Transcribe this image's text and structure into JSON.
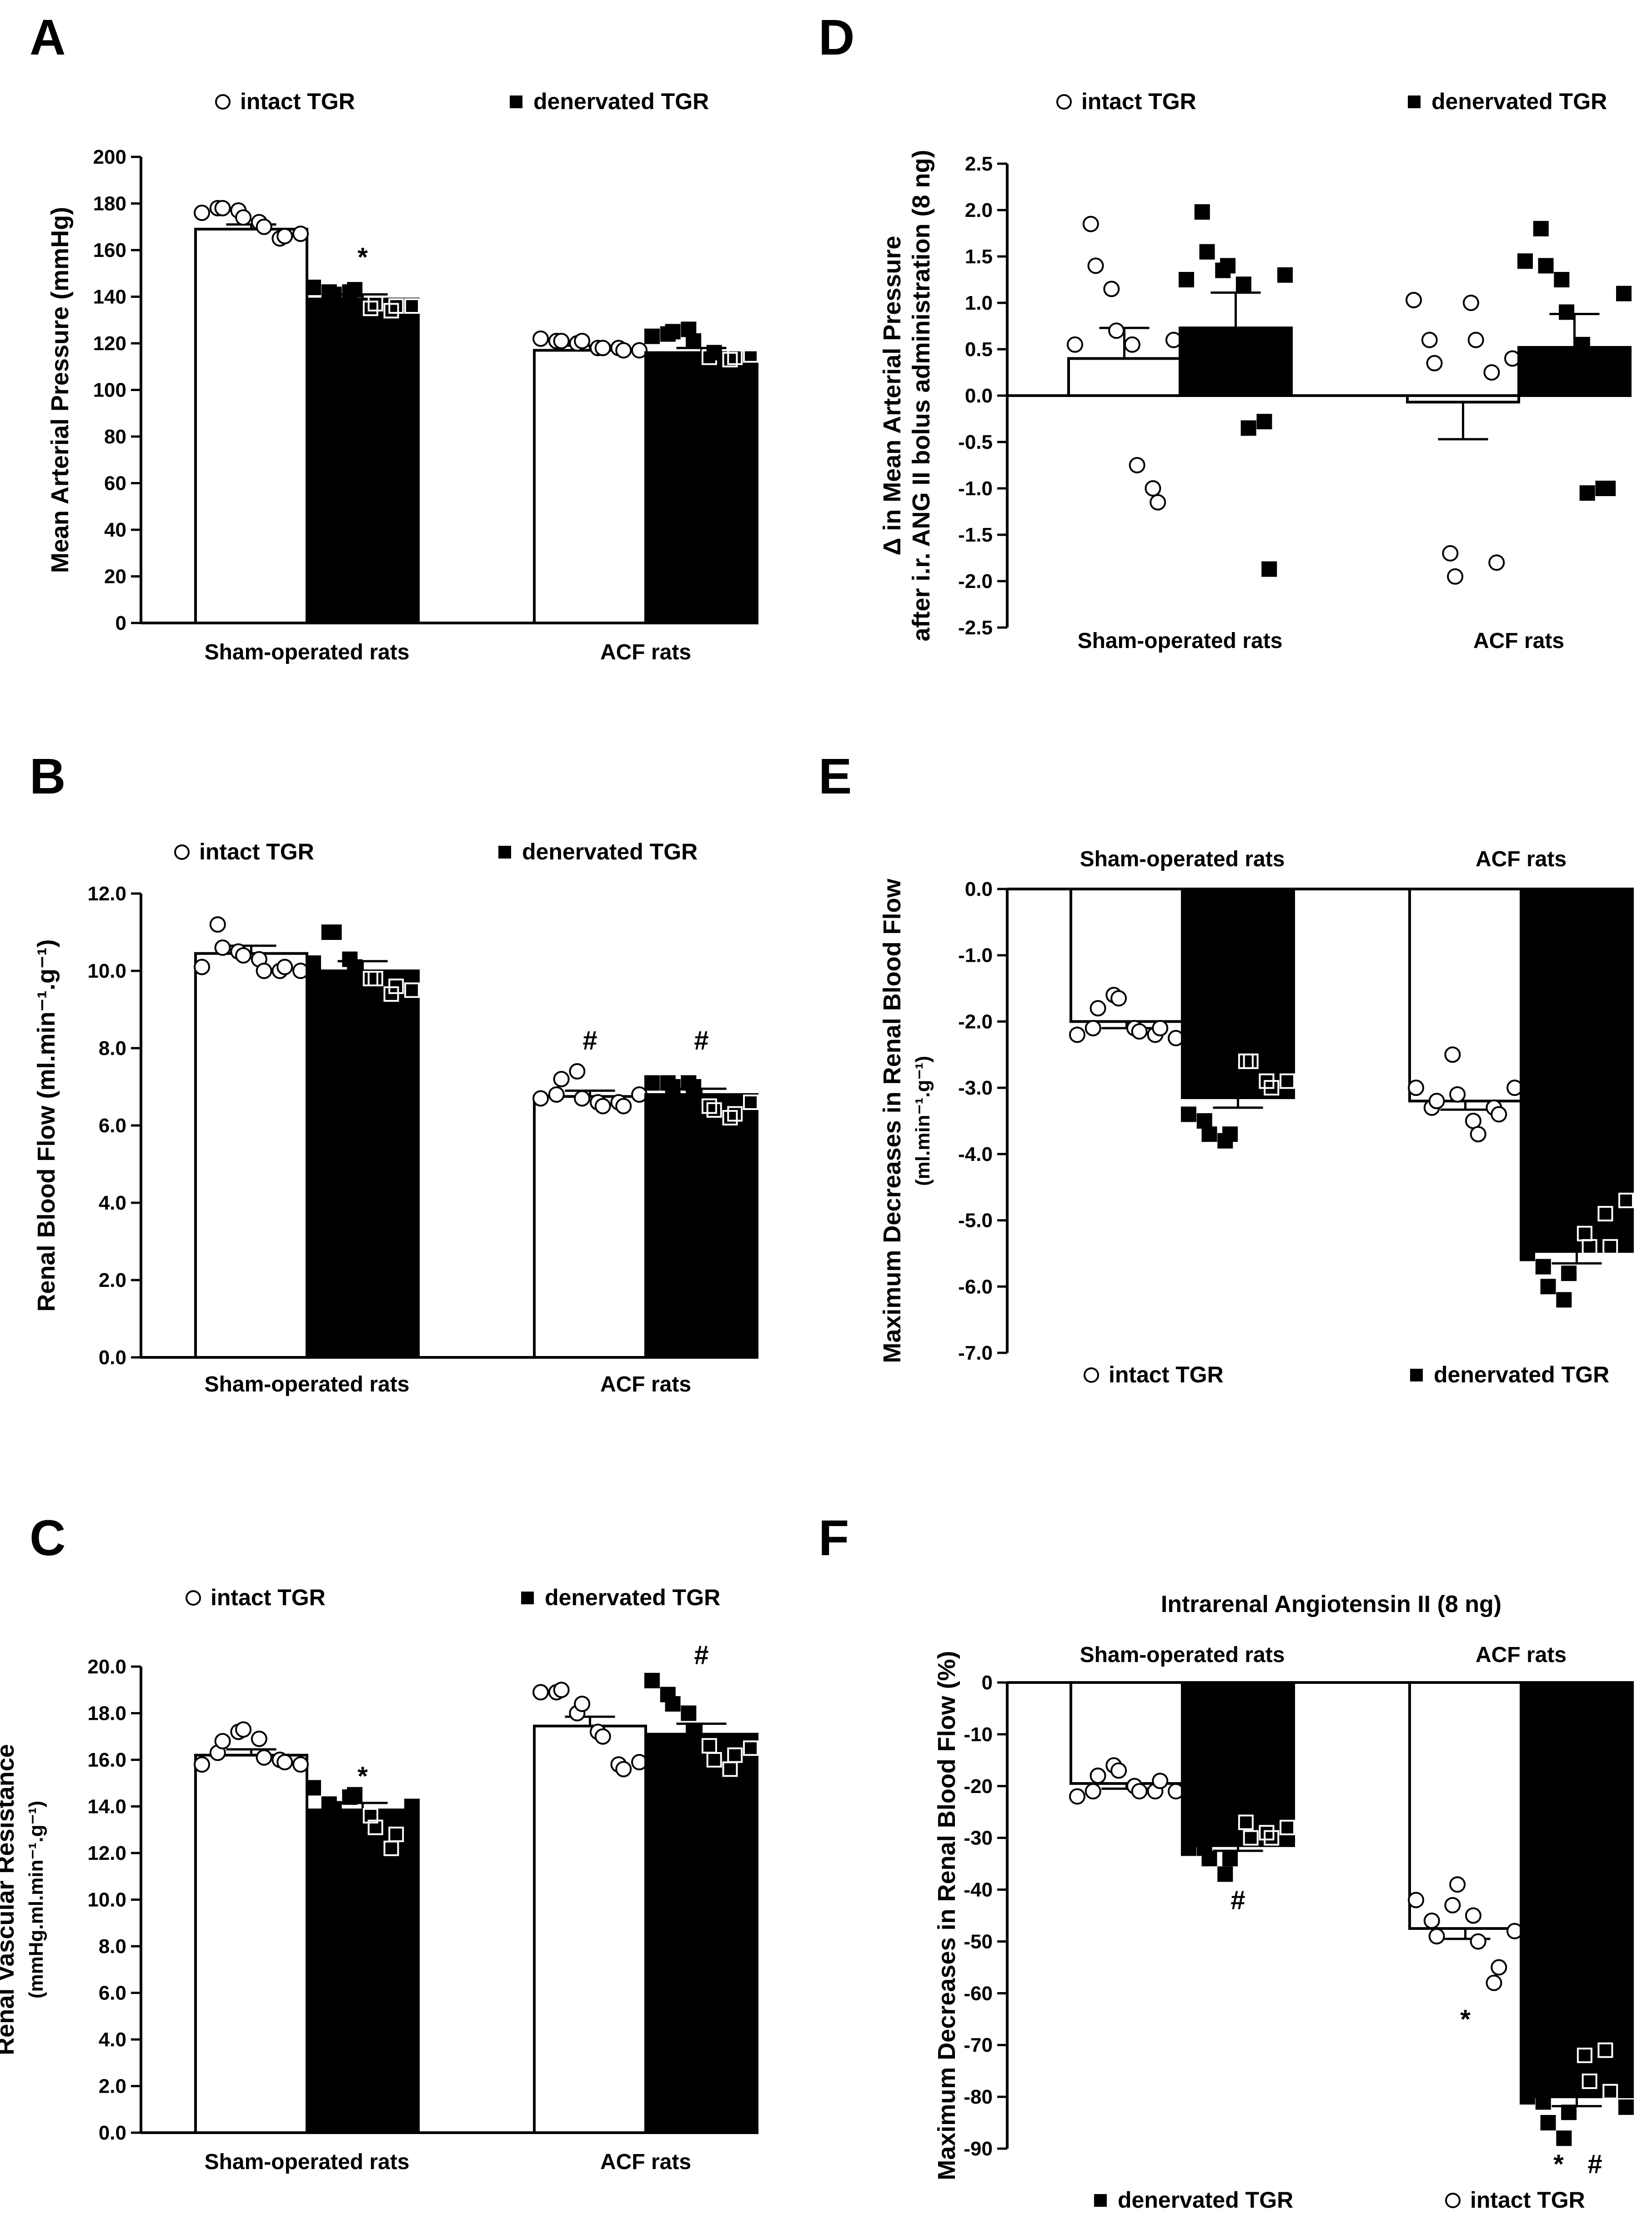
{
  "colors": {
    "open": "#ffffff",
    "filled": "#000000",
    "stroke": "#000000"
  },
  "chart_data": [
    {
      "letter": "A",
      "type": "bar",
      "legend": [
        "intact TGR",
        "denervated TGR"
      ],
      "legend_order": [
        "intact",
        "denervated"
      ],
      "categories": [
        "Sham-operated rats",
        "ACF rats"
      ],
      "ylabel": [
        "Mean Arterial Pressure (mmHg)"
      ],
      "ylim": [
        0,
        200
      ],
      "ystep": 20,
      "ytick_decimals": 0,
      "series": [
        {
          "name": "intact TGR",
          "fill": "open",
          "values": [
            169,
            117
          ],
          "sem": [
            2,
            2
          ]
        },
        {
          "name": "denervated TGR",
          "fill": "filled",
          "values": [
            139,
            116
          ],
          "sem": [
            2,
            2
          ]
        }
      ],
      "points": [
        [
          [
            176,
            178,
            178,
            177,
            174,
            172,
            170,
            165,
            166,
            167
          ],
          [
            122,
            121,
            121,
            120,
            121,
            118,
            118,
            118,
            117,
            117
          ]
        ],
        [
          [
            144,
            142,
            141,
            142,
            143,
            135,
            137,
            134,
            136,
            136
          ],
          [
            123,
            124,
            125,
            126,
            121,
            114,
            116,
            113,
            114,
            115
          ]
        ]
      ],
      "annotations": [
        {
          "text": "*",
          "category": 0,
          "series": 1,
          "value": 157
        }
      ]
    },
    {
      "letter": "B",
      "type": "bar",
      "legend": [
        "intact TGR",
        "denervated TGR"
      ],
      "legend_order": [
        "intact",
        "denervated"
      ],
      "categories": [
        "Sham-operated rats",
        "ACF rats"
      ],
      "ylabel": [
        "Renal Blood Flow (ml.min⁻¹.g⁻¹)"
      ],
      "ylim": [
        0,
        12
      ],
      "ystep": 2,
      "ytick_decimals": 1,
      "series": [
        {
          "name": "intact TGR",
          "fill": "open",
          "values": [
            10.45,
            6.75
          ],
          "sem": [
            0.2,
            0.15
          ]
        },
        {
          "name": "denervated TGR",
          "fill": "filled",
          "values": [
            10.0,
            6.8
          ],
          "sem": [
            0.25,
            0.15
          ]
        }
      ],
      "points": [
        [
          [
            10.1,
            11.2,
            10.6,
            10.5,
            10.4,
            10.3,
            10.0,
            10.0,
            10.1,
            10.0
          ],
          [
            6.7,
            6.8,
            7.2,
            7.4,
            6.7,
            6.6,
            6.5,
            6.6,
            6.5,
            6.8
          ]
        ],
        [
          [
            10.2,
            11.0,
            11.0,
            10.3,
            10.1,
            9.8,
            9.8,
            9.4,
            9.6,
            9.5
          ],
          [
            7.1,
            7.1,
            7.0,
            7.1,
            7.0,
            6.5,
            6.4,
            6.2,
            6.3,
            6.6
          ]
        ]
      ],
      "annotations": [
        {
          "text": "#",
          "category": 1,
          "series": 0,
          "value": 8.2
        },
        {
          "text": "#",
          "category": 1,
          "series": 1,
          "value": 8.2
        }
      ]
    },
    {
      "letter": "C",
      "type": "bar",
      "legend": [
        "intact TGR",
        "denervated TGR"
      ],
      "legend_order": [
        "intact",
        "denervated"
      ],
      "categories": [
        "Sham-operated rats",
        "ACF rats"
      ],
      "ylabel": [
        "Renal Vascular Resistance",
        "(mmHg.ml.min⁻¹.g⁻¹)"
      ],
      "ylim": [
        0,
        20
      ],
      "ystep": 2,
      "ytick_decimals": 1,
      "series": [
        {
          "name": "intact TGR",
          "fill": "open",
          "values": [
            16.2,
            17.45
          ],
          "sem": [
            0.25,
            0.4
          ]
        },
        {
          "name": "denervated TGR",
          "fill": "filled",
          "values": [
            13.85,
            17.1
          ],
          "sem": [
            0.3,
            0.45
          ]
        }
      ],
      "points": [
        [
          [
            15.8,
            16.3,
            16.8,
            17.2,
            17.3,
            16.9,
            16.1,
            16.0,
            15.9,
            15.8
          ],
          [
            18.9,
            18.9,
            19.0,
            18.0,
            18.4,
            17.2,
            17.0,
            15.8,
            15.6,
            15.9
          ]
        ],
        [
          [
            14.8,
            14.1,
            13.9,
            14.4,
            14.5,
            13.6,
            13.1,
            12.2,
            12.8,
            14.0
          ],
          [
            19.4,
            18.8,
            18.4,
            18.0,
            17.2,
            16.6,
            16.0,
            15.6,
            16.2,
            16.5
          ]
        ]
      ],
      "annotations": [
        {
          "text": "*",
          "category": 0,
          "series": 1,
          "value": 15.3
        },
        {
          "text": "#",
          "category": 1,
          "series": 1,
          "value": 20.5
        }
      ]
    },
    {
      "letter": "D",
      "type": "bar",
      "legend": [
        "intact TGR",
        "denervated TGR"
      ],
      "legend_order": [
        "intact",
        "denervated"
      ],
      "categories": [
        "Sham-operated rats",
        "ACF rats"
      ],
      "ylabel": [
        "Δ in Mean Arterial Pressure",
        "after i.r. ANG II bolus administration (8 ng)"
      ],
      "ylim": [
        -2.5,
        2.5
      ],
      "ystep": 0.5,
      "ytick_decimals": 1,
      "series": [
        {
          "name": "intact TGR",
          "fill": "open",
          "values": [
            0.4,
            -0.07
          ],
          "sem": [
            0.33,
            0.4
          ]
        },
        {
          "name": "denervated TGR",
          "fill": "filled",
          "values": [
            0.73,
            0.52
          ],
          "sem": [
            0.38,
            0.36
          ]
        }
      ],
      "points": [
        [
          [
            0.55,
            1.85,
            1.4,
            1.15,
            0.7,
            0.55,
            -0.75,
            -1.0,
            -1.15,
            0.6
          ],
          [
            1.03,
            0.6,
            0.35,
            -1.7,
            -1.95,
            1.0,
            0.6,
            0.25,
            -1.8,
            0.4
          ]
        ],
        [
          [
            1.25,
            1.98,
            1.55,
            1.35,
            1.4,
            1.2,
            -0.35,
            -0.28,
            -1.87,
            1.3
          ],
          [
            1.45,
            1.8,
            1.4,
            1.25,
            0.9,
            0.55,
            -1.05,
            -1.0,
            -1.0,
            1.1
          ]
        ]
      ],
      "annotations": []
    },
    {
      "letter": "E",
      "type": "bar",
      "legend": [
        "intact TGR",
        "denervated TGR"
      ],
      "legend_order": [
        "intact",
        "denervated"
      ],
      "legend_position": "bottom",
      "categories": [
        "Sham-operated rats",
        "ACF rats"
      ],
      "categories_position": "top",
      "ylabel": [
        "Maximum Decreases in Renal Blood Flow",
        "(ml.min⁻¹.g⁻¹)"
      ],
      "ylim": [
        -7,
        0
      ],
      "ystep": 1,
      "ytick_decimals": 1,
      "series": [
        {
          "name": "intact TGR",
          "fill": "open",
          "values": [
            -2.0,
            -3.2
          ],
          "sem": [
            0.1,
            0.13
          ]
        },
        {
          "name": "denervated TGR",
          "fill": "filled",
          "values": [
            -3.15,
            -5.47
          ],
          "sem": [
            0.15,
            0.18
          ]
        }
      ],
      "points": [
        [
          [
            -2.2,
            -2.1,
            -1.8,
            -1.6,
            -1.65,
            -2.1,
            -2.15,
            -2.2,
            -2.1,
            -2.25
          ],
          [
            -3.0,
            -3.3,
            -3.2,
            -2.5,
            -3.1,
            -3.5,
            -3.7,
            -3.3,
            -3.4,
            -3.0
          ]
        ],
        [
          [
            -3.4,
            -3.5,
            -3.7,
            -3.8,
            -3.7,
            -2.6,
            -2.6,
            -2.9,
            -3.0,
            -2.9
          ],
          [
            -5.5,
            -5.7,
            -6.0,
            -6.2,
            -5.8,
            -5.2,
            -5.4,
            -4.9,
            -5.4,
            -4.7
          ]
        ]
      ],
      "annotations": []
    },
    {
      "letter": "F",
      "type": "bar",
      "title": "Intrarenal Angiotensin II (8 ng)",
      "legend": [
        "denervated TGR",
        "intact TGR"
      ],
      "legend_order": [
        "denervated",
        "intact"
      ],
      "legend_position": "bottom",
      "categories": [
        "Sham-operated rats",
        "ACF rats"
      ],
      "categories_position": "top",
      "ylabel": [
        "Maximum Decreases in Renal Blood Flow (%)"
      ],
      "ylim": [
        -90,
        0
      ],
      "ystep": 10,
      "ytick_decimals": 0,
      "series": [
        {
          "name": "intact TGR",
          "fill": "open",
          "values": [
            -19.5,
            -47.5
          ],
          "sem": [
            1.0,
            2.0
          ]
        },
        {
          "name": "denervated TGR",
          "fill": "filled",
          "values": [
            -31.5,
            -80.0
          ],
          "sem": [
            1.0,
            1.8
          ]
        }
      ],
      "points": [
        [
          [
            -22,
            -21,
            -18,
            -16,
            -17,
            -20,
            -21,
            -21,
            -19,
            -21
          ],
          [
            -42,
            -46,
            -49,
            -43,
            -39,
            -45,
            -50,
            -58,
            -55,
            -48
          ]
        ],
        [
          [
            -32,
            -32,
            -34,
            -37,
            -34,
            -27,
            -30,
            -29,
            -30,
            -28
          ],
          [
            -80,
            -81,
            -85,
            -88,
            -83,
            -72,
            -77,
            -71,
            -79,
            -82
          ]
        ]
      ],
      "annotations": [
        {
          "text": "#",
          "category": 0,
          "series": 1,
          "value": -42
        },
        {
          "text": "*",
          "category": 1,
          "series": 0,
          "value": -65
        },
        {
          "text": "*",
          "category": 1,
          "series": 1,
          "value": -93
        },
        {
          "text": "#",
          "category": 1,
          "series": 1,
          "value": -93
        }
      ]
    }
  ]
}
